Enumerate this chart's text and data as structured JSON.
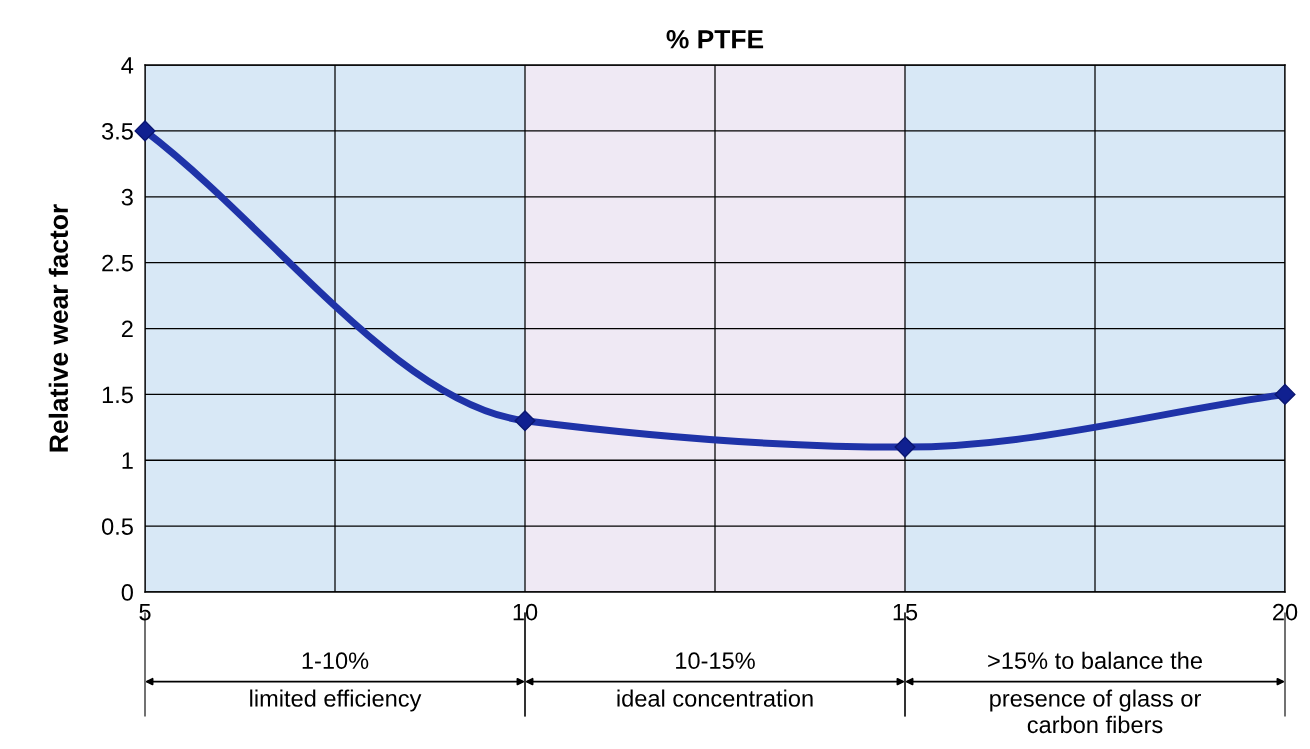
{
  "chart_data": {
    "type": "line",
    "title": "% PTFE",
    "ylabel": "Relative wear factor",
    "x": [
      5,
      10,
      15,
      20
    ],
    "series": [
      {
        "color": "#1f33a8",
        "values": [
          3.5,
          1.3,
          1.1,
          1.5
        ]
      }
    ],
    "xlim": [
      5,
      20
    ],
    "xticks": [
      5,
      {
        "value": 7.5,
        "label": null
      },
      10,
      {
        "value": 12.5,
        "label": null
      },
      15,
      {
        "value": 17.5,
        "label": null
      },
      20
    ],
    "ylim": [
      0,
      4
    ],
    "yticks": [
      0,
      0.5,
      1,
      1.5,
      2,
      2.5,
      3,
      3.5,
      4
    ],
    "grid": true,
    "marker": "diamond",
    "line_style": "solid",
    "bands": [
      {
        "axis": "x",
        "from": 5,
        "to": 10,
        "label": "1-10%\nlimited efficiency",
        "color": "#d8e8f6"
      },
      {
        "axis": "x",
        "from": 10,
        "to": 15,
        "label": "10-15%\nideal concentration",
        "color": "#efe9f4"
      },
      {
        "axis": "x",
        "from": 15,
        "to": 20,
        "label": ">15% to balance the\npresence of glass or\ncarbon fibers",
        "color": "#d8e8f6"
      }
    ]
  }
}
